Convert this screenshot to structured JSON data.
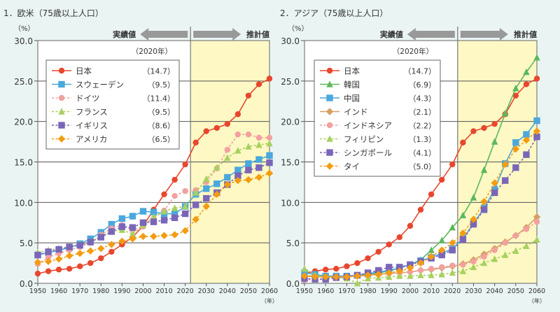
{
  "chart_data": [
    {
      "type": "line",
      "title": "1．欧米（75歳以上人口）",
      "ylabel": "（%）",
      "xlabel": "（年）",
      "ylim": [
        0,
        30
      ],
      "yticks": [
        "0.0",
        "5.0",
        "10.0",
        "15.0",
        "20.0",
        "25.0",
        "30.0"
      ],
      "xticks": [
        1950,
        1960,
        1970,
        1980,
        1990,
        2000,
        2010,
        2020,
        2030,
        2040,
        2050,
        2060
      ],
      "actual_label": "実績値",
      "projected_label": "推計値",
      "projection_start": 2022.5,
      "legend_title": "（2020年）",
      "legend_placement": "top-left",
      "x": [
        1950,
        1955,
        1960,
        1965,
        1970,
        1975,
        1980,
        1985,
        1990,
        1995,
        2000,
        2005,
        2010,
        2015,
        2020,
        2025,
        2030,
        2035,
        2040,
        2045,
        2050,
        2055,
        2060
      ],
      "series": [
        {
          "name": "日本",
          "value2020": "（14.7）",
          "color": "#e8472e",
          "marker": "circle",
          "dashed": false,
          "values": [
            1.2,
            1.5,
            1.7,
            1.8,
            2.1,
            2.5,
            3.1,
            3.9,
            4.8,
            5.7,
            7.1,
            9.1,
            11.0,
            12.8,
            14.7,
            17.4,
            18.8,
            19.2,
            19.7,
            20.9,
            23.2,
            24.6,
            25.3
          ]
        },
        {
          "name": "スウェーデン",
          "value2020": "（9.5）",
          "color": "#4aa8dc",
          "marker": "square",
          "dashed": false,
          "values": [
            3.5,
            3.8,
            4.1,
            4.4,
            4.9,
            5.5,
            6.3,
            7.3,
            8.0,
            8.3,
            8.9,
            8.8,
            8.6,
            8.6,
            9.5,
            11.0,
            11.7,
            12.3,
            13.1,
            14.0,
            14.8,
            15.3,
            15.8
          ]
        },
        {
          "name": "ドイツ",
          "value2020": "（11.4）",
          "color": "#f2a0a0",
          "marker": "circle",
          "dashed": true,
          "values": [
            2.4,
            3.2,
            3.7,
            4.1,
            4.5,
            5.0,
            6.0,
            6.8,
            7.2,
            6.6,
            7.0,
            8.0,
            9.0,
            10.8,
            11.4,
            11.5,
            12.5,
            14.2,
            16.5,
            18.4,
            18.4,
            18.0,
            18.0
          ]
        },
        {
          "name": "フランス",
          "value2020": "（9.5）",
          "color": "#a8d060",
          "marker": "triangle",
          "dashed": true,
          "values": [
            3.8,
            4.1,
            4.3,
            4.5,
            4.8,
            5.1,
            5.8,
            6.4,
            6.6,
            6.1,
            7.2,
            8.2,
            8.9,
            9.3,
            9.5,
            11.2,
            12.9,
            14.3,
            15.5,
            16.4,
            16.9,
            17.1,
            17.3
          ]
        },
        {
          "name": "イギリス",
          "value2020": "（8.6）",
          "color": "#7a66b8",
          "marker": "square",
          "dashed": true,
          "values": [
            3.5,
            3.9,
            4.2,
            4.5,
            4.7,
            5.1,
            5.7,
            6.4,
            7.0,
            6.9,
            7.5,
            7.6,
            7.8,
            8.1,
            8.6,
            9.7,
            10.5,
            11.2,
            12.2,
            13.3,
            14.0,
            14.3,
            14.9
          ]
        },
        {
          "name": "アメリカ",
          "value2020": "（6.5）",
          "color": "#f39c12",
          "marker": "diamond",
          "dashed": true,
          "values": [
            2.6,
            2.7,
            3.0,
            3.4,
            3.7,
            4.0,
            4.3,
            4.8,
            5.2,
            5.5,
            5.8,
            5.8,
            5.9,
            6.0,
            6.5,
            7.9,
            9.5,
            11.0,
            12.2,
            12.7,
            12.8,
            13.1,
            13.6
          ]
        }
      ]
    },
    {
      "type": "line",
      "title": "2．アジア（75歳以上人口）",
      "ylabel": "（%）",
      "xlabel": "（年）",
      "ylim": [
        0,
        30
      ],
      "yticks": [
        "0.0",
        "5.0",
        "10.0",
        "15.0",
        "20.0",
        "25.0",
        "30.0"
      ],
      "xticks": [
        1950,
        1960,
        1970,
        1980,
        1990,
        2000,
        2010,
        2020,
        2030,
        2040,
        2050,
        2060
      ],
      "actual_label": "実績値",
      "projected_label": "推計値",
      "projection_start": 2022.5,
      "legend_title": "（2020年）",
      "legend_placement": "top-left",
      "x": [
        1950,
        1955,
        1960,
        1965,
        1970,
        1975,
        1980,
        1985,
        1990,
        1995,
        2000,
        2005,
        2010,
        2015,
        2020,
        2025,
        2030,
        2035,
        2040,
        2045,
        2050,
        2055,
        2060
      ],
      "series": [
        {
          "name": "日本",
          "value2020": "（14.7）",
          "color": "#e8472e",
          "marker": "circle",
          "dashed": false,
          "values": [
            1.2,
            1.5,
            1.7,
            1.8,
            2.1,
            2.5,
            3.1,
            3.9,
            4.8,
            5.7,
            7.1,
            9.1,
            11.0,
            12.8,
            14.7,
            17.4,
            18.8,
            19.2,
            19.7,
            20.9,
            23.2,
            24.6,
            25.3
          ]
        },
        {
          "name": "韓国",
          "value2020": "（6.9）",
          "color": "#5cb85c",
          "marker": "triangle",
          "dashed": false,
          "values": [
            0.9,
            0.8,
            0.8,
            0.8,
            0.9,
            1.0,
            1.1,
            1.3,
            1.5,
            1.9,
            2.3,
            2.9,
            4.1,
            5.3,
            6.9,
            8.4,
            10.6,
            14.0,
            17.5,
            21.0,
            24.1,
            26.1,
            27.9
          ]
        },
        {
          "name": "中国",
          "value2020": "（4.3）",
          "color": "#4aa8dc",
          "marker": "square",
          "dashed": false,
          "values": [
            1.3,
            1.1,
            0.9,
            0.9,
            0.9,
            1.0,
            1.2,
            1.4,
            1.6,
            1.9,
            2.3,
            2.8,
            3.2,
            3.7,
            4.3,
            5.5,
            7.4,
            9.3,
            11.6,
            14.8,
            17.4,
            18.4,
            20.1
          ]
        },
        {
          "name": "インド",
          "value2020": "（2.1）",
          "color": "#d4a060",
          "marker": "diamond",
          "dashed": false,
          "values": [
            0.9,
            0.9,
            0.8,
            0.8,
            0.8,
            0.9,
            1.0,
            1.1,
            1.2,
            1.3,
            1.4,
            1.6,
            1.7,
            1.9,
            2.1,
            2.4,
            2.9,
            3.6,
            4.3,
            5.1,
            5.9,
            6.9,
            8.2
          ]
        },
        {
          "name": "インドネシア",
          "value2020": "（2.2）",
          "color": "#f2a0a0",
          "marker": "circle",
          "dashed": true,
          "values": [
            0.4,
            0.5,
            0.6,
            0.7,
            0.8,
            0.9,
            1.0,
            1.1,
            1.2,
            1.3,
            1.4,
            1.6,
            1.8,
            2.0,
            2.2,
            2.3,
            2.7,
            3.3,
            4.1,
            5.0,
            5.9,
            6.7,
            7.6
          ]
        },
        {
          "name": "フィリピン",
          "value2020": "（1.3）",
          "color": "#a8d060",
          "marker": "triangle",
          "dashed": true,
          "values": [
            1.8,
            1.0,
            0.8,
            0.7,
            0.6,
            0.0,
            0.6,
            0.7,
            0.8,
            0.9,
            0.9,
            1.0,
            1.0,
            1.1,
            1.3,
            1.5,
            2.0,
            2.5,
            3.0,
            3.5,
            4.0,
            4.6,
            5.4
          ]
        },
        {
          "name": "シンガポール",
          "value2020": "（4.1）",
          "color": "#7a66b8",
          "marker": "square",
          "dashed": true,
          "values": [
            0.6,
            0.5,
            0.5,
            0.7,
            0.8,
            1.0,
            1.3,
            1.6,
            2.0,
            2.0,
            2.3,
            2.7,
            3.1,
            3.5,
            4.1,
            5.4,
            7.3,
            9.1,
            11.2,
            12.7,
            14.3,
            15.9,
            18.1
          ]
        },
        {
          "name": "タイ",
          "value2020": "（5.0）",
          "color": "#f39c12",
          "marker": "diamond",
          "dashed": true,
          "values": [
            0.9,
            0.8,
            0.8,
            0.8,
            0.8,
            0.9,
            1.0,
            1.1,
            1.3,
            1.5,
            1.9,
            2.5,
            3.3,
            4.1,
            5.0,
            6.2,
            7.9,
            10.1,
            12.4,
            14.7,
            16.6,
            17.7,
            18.8
          ]
        }
      ]
    }
  ]
}
